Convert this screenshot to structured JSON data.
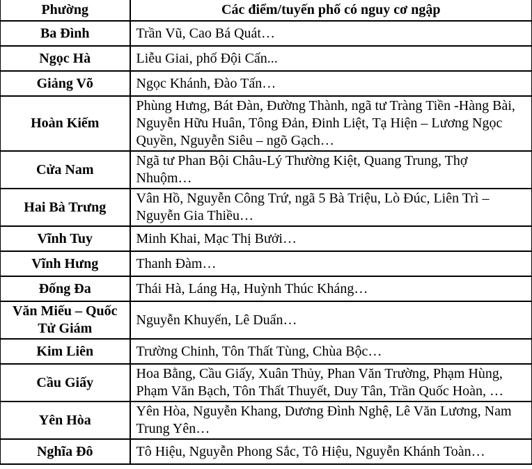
{
  "table": {
    "header": {
      "ward": "Phường",
      "streets": "Các điểm/tuyến phố có nguy cơ ngập"
    },
    "rows": [
      {
        "ward": "Ba Đình",
        "streets": "Trần Vũ, Cao Bá Quát…"
      },
      {
        "ward": "Ngọc Hà",
        "streets": "Liễu Giai, phố Đội Cấn..."
      },
      {
        "ward": "Giảng Võ",
        "streets": "Ngọc Khánh, Đào Tấn…"
      },
      {
        "ward": "Hoàn Kiếm",
        "streets": "Phùng Hưng, Bát Đàn, Đường Thành, ngã tư Tràng Tiền -Hàng Bài, Nguyễn Hữu Huân, Tông Đản, Đinh Liệt, Tạ Hiện – Lương Ngọc Quyền, Nguyễn Siêu – ngõ Gạch…"
      },
      {
        "ward": "Cửa Nam",
        "streets": "Ngã tư Phan Bội Châu-Lý Thường Kiệt, Quang Trung, Thợ Nhuộm…"
      },
      {
        "ward": "Hai Bà Trưng",
        "streets": "Vân Hồ, Nguyễn Công Trứ, ngã 5 Bà Triệu, Lò Đúc, Liên Trì – Nguyễn Gia Thiều…"
      },
      {
        "ward": "Vĩnh Tuy",
        "streets": "Minh Khai, Mạc Thị Bưởi…"
      },
      {
        "ward": "Vĩnh Hưng",
        "streets": "Thanh Đàm…"
      },
      {
        "ward": "Đống Đa",
        "streets": "Thái Hà, Láng Hạ, Huỳnh Thúc Kháng…"
      },
      {
        "ward": "Văn Miếu – Quốc Tử Giám",
        "streets": "Nguyễn Khuyến, Lê Duẩn…"
      },
      {
        "ward": "Kim Liên",
        "streets": "Trường Chinh, Tôn Thất Tùng, Chùa Bộc…"
      },
      {
        "ward": "Cầu Giấy",
        "streets": "Hoa Bằng, Cầu Giấy, Xuân Thủy, Phan Văn Trường, Phạm Hùng, Phạm Văn Bạch, Tôn Thất Thuyết, Duy Tân, Trần Quốc Hoàn, …"
      },
      {
        "ward": "Yên Hòa",
        "streets": "Yên Hòa, Nguyễn Khang, Dương Đình Nghệ, Lê Văn Lương, Nam Trung Yên…"
      },
      {
        "ward": "Nghĩa Đô",
        "streets": "Tô Hiệu, Nguyễn Phong Sắc, Tô Hiệu, Nguyễn Khánh Toàn…"
      }
    ]
  }
}
